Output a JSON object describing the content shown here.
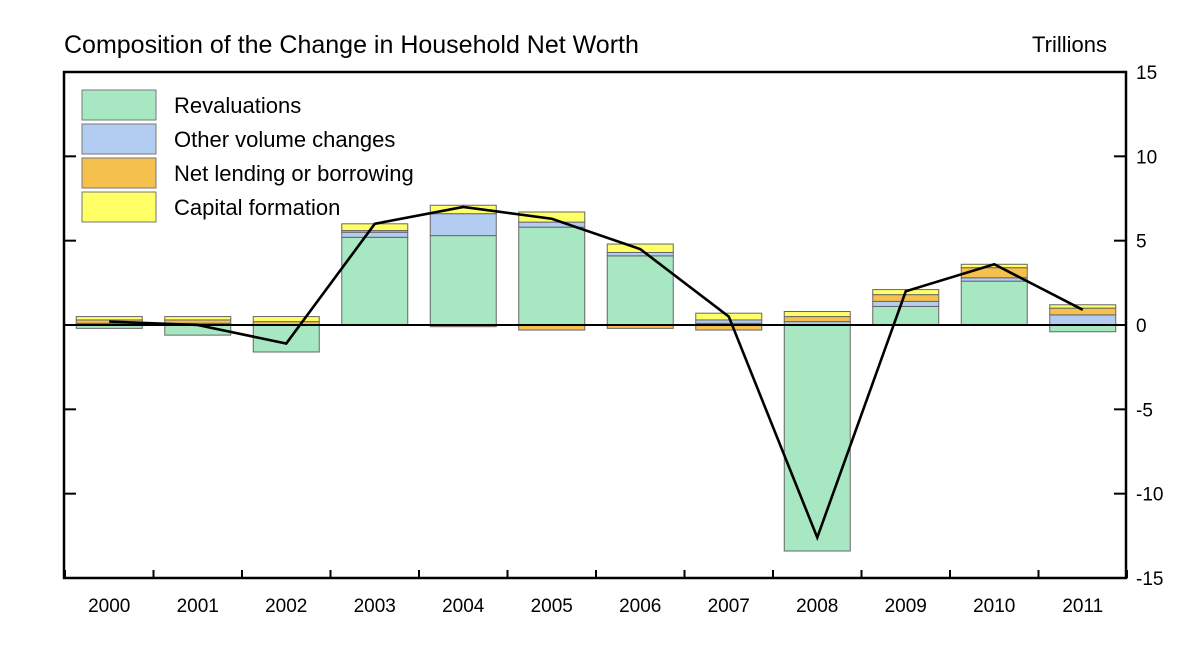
{
  "chart_data": {
    "type": "bar",
    "stacked": true,
    "title": "Composition of the Change in Household Net Worth",
    "units_label": "Trillions",
    "ylim": [
      -15,
      15
    ],
    "yticks": [
      15,
      10,
      5,
      0,
      -5,
      -10,
      -15
    ],
    "y_axis_side": "right",
    "grid": false,
    "legend_position": "top-left",
    "categories": [
      "2000",
      "2001",
      "2002",
      "2003",
      "2004",
      "2005",
      "2006",
      "2007",
      "2008",
      "2009",
      "2010",
      "2011"
    ],
    "series": [
      {
        "name": "Revaluations",
        "color": "#a7e8c2",
        "values": [
          -0.2,
          -0.6,
          -1.6,
          5.2,
          5.3,
          5.8,
          4.1,
          0.1,
          -13.4,
          1.1,
          2.6,
          -0.4
        ]
      },
      {
        "name": "Other volume changes",
        "color": "#b3cdf2",
        "values": [
          0.1,
          0.1,
          0.0,
          0.3,
          1.3,
          0.3,
          0.2,
          0.2,
          0.2,
          0.3,
          0.2,
          0.6
        ]
      },
      {
        "name": "Net lending or borrowing",
        "color": "#f5c04e",
        "values": [
          0.2,
          0.2,
          0.2,
          0.1,
          -0.1,
          -0.3,
          -0.2,
          -0.3,
          0.3,
          0.4,
          0.6,
          0.4
        ]
      },
      {
        "name": "Capital formation",
        "color": "#ffff66",
        "values": [
          0.2,
          0.2,
          0.3,
          0.4,
          0.5,
          0.6,
          0.5,
          0.4,
          0.3,
          0.3,
          0.2,
          0.2
        ]
      }
    ],
    "line": {
      "color": "#000000",
      "values": [
        0.2,
        0.0,
        -1.1,
        6.0,
        7.0,
        6.3,
        4.5,
        0.5,
        -12.6,
        2.0,
        3.6,
        0.9
      ]
    }
  }
}
